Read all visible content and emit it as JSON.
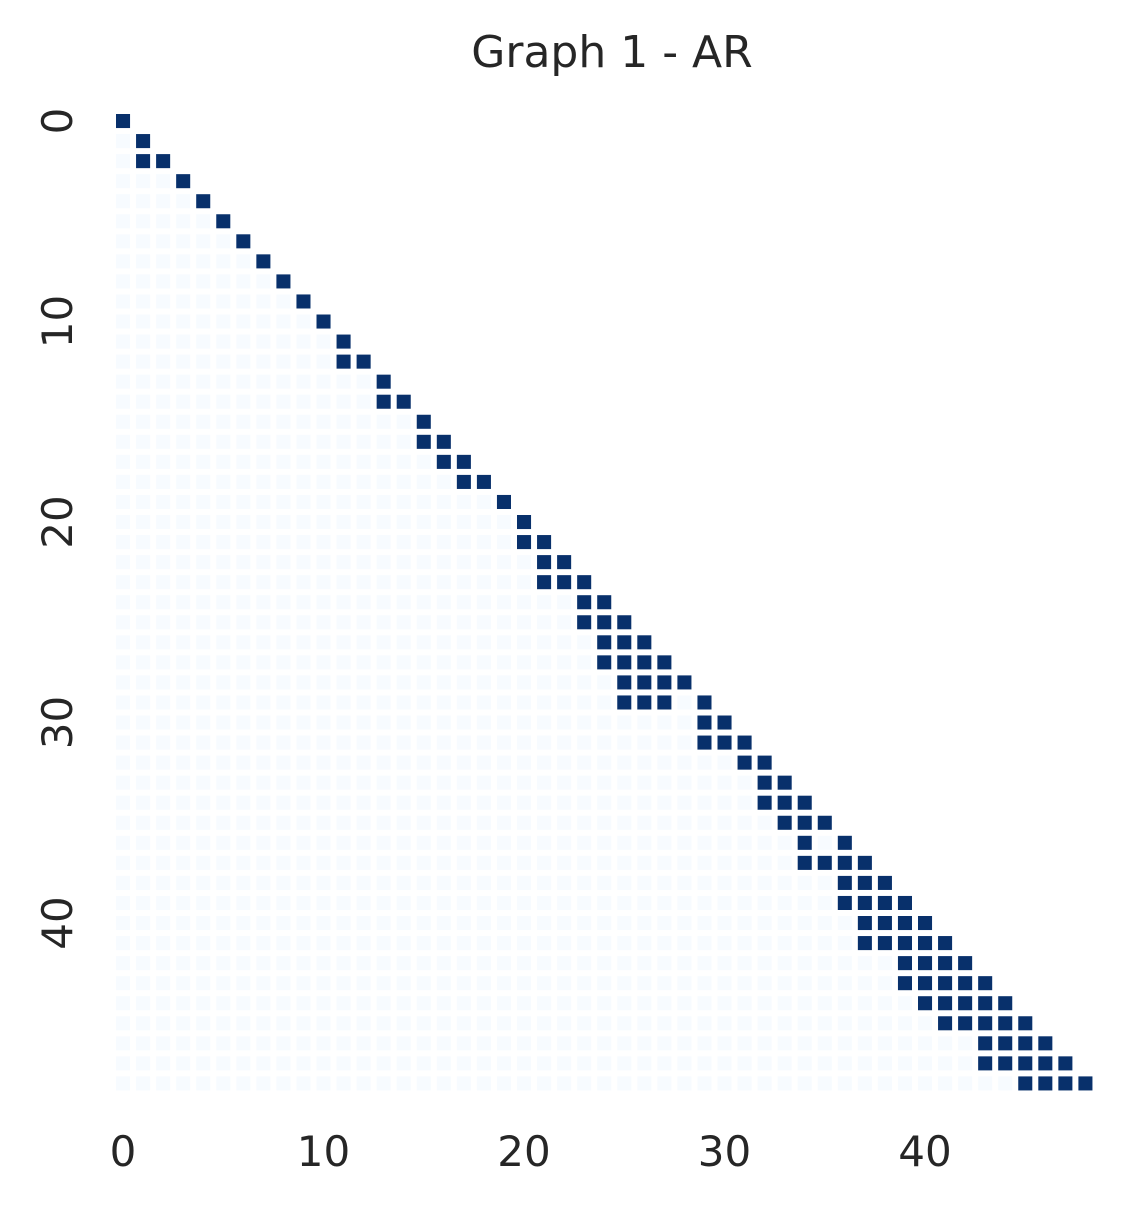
{
  "chart_data": {
    "type": "heatmap",
    "title": "Graph 1 - AR",
    "xlabel": "",
    "ylabel": "",
    "n": 49,
    "x_ticks": [
      0,
      10,
      20,
      30,
      40
    ],
    "y_ticks": [
      0,
      10,
      20,
      30,
      40
    ],
    "mask": "lower-triangle-including-diagonal",
    "colormap": {
      "zero": "#f7fbff",
      "one": "#08306b"
    },
    "ones": [
      [
        0,
        0
      ],
      [
        1,
        1
      ],
      [
        2,
        1
      ],
      [
        2,
        2
      ],
      [
        3,
        3
      ],
      [
        4,
        4
      ],
      [
        5,
        5
      ],
      [
        6,
        6
      ],
      [
        7,
        7
      ],
      [
        8,
        8
      ],
      [
        9,
        9
      ],
      [
        10,
        10
      ],
      [
        11,
        11
      ],
      [
        12,
        11
      ],
      [
        12,
        12
      ],
      [
        13,
        13
      ],
      [
        14,
        13
      ],
      [
        14,
        14
      ],
      [
        15,
        15
      ],
      [
        16,
        15
      ],
      [
        16,
        16
      ],
      [
        17,
        16
      ],
      [
        17,
        17
      ],
      [
        18,
        17
      ],
      [
        18,
        18
      ],
      [
        19,
        19
      ],
      [
        20,
        20
      ],
      [
        21,
        20
      ],
      [
        21,
        21
      ],
      [
        22,
        21
      ],
      [
        22,
        22
      ],
      [
        23,
        21
      ],
      [
        23,
        22
      ],
      [
        23,
        23
      ],
      [
        24,
        23
      ],
      [
        24,
        24
      ],
      [
        25,
        23
      ],
      [
        25,
        24
      ],
      [
        25,
        25
      ],
      [
        26,
        24
      ],
      [
        26,
        25
      ],
      [
        26,
        26
      ],
      [
        27,
        24
      ],
      [
        27,
        25
      ],
      [
        27,
        26
      ],
      [
        27,
        27
      ],
      [
        28,
        25
      ],
      [
        28,
        26
      ],
      [
        28,
        27
      ],
      [
        28,
        28
      ],
      [
        29,
        25
      ],
      [
        29,
        26
      ],
      [
        29,
        27
      ],
      [
        29,
        29
      ],
      [
        30,
        29
      ],
      [
        30,
        30
      ],
      [
        31,
        29
      ],
      [
        31,
        30
      ],
      [
        31,
        31
      ],
      [
        32,
        31
      ],
      [
        32,
        32
      ],
      [
        33,
        32
      ],
      [
        33,
        33
      ],
      [
        34,
        32
      ],
      [
        34,
        33
      ],
      [
        34,
        34
      ],
      [
        35,
        33
      ],
      [
        35,
        34
      ],
      [
        35,
        35
      ],
      [
        36,
        34
      ],
      [
        36,
        36
      ],
      [
        37,
        34
      ],
      [
        37,
        35
      ],
      [
        37,
        36
      ],
      [
        37,
        37
      ],
      [
        38,
        36
      ],
      [
        38,
        37
      ],
      [
        38,
        38
      ],
      [
        39,
        36
      ],
      [
        39,
        37
      ],
      [
        39,
        38
      ],
      [
        39,
        39
      ],
      [
        40,
        37
      ],
      [
        40,
        38
      ],
      [
        40,
        39
      ],
      [
        40,
        40
      ],
      [
        41,
        37
      ],
      [
        41,
        38
      ],
      [
        41,
        39
      ],
      [
        41,
        40
      ],
      [
        41,
        41
      ],
      [
        42,
        39
      ],
      [
        42,
        40
      ],
      [
        42,
        41
      ],
      [
        42,
        42
      ],
      [
        43,
        39
      ],
      [
        43,
        40
      ],
      [
        43,
        41
      ],
      [
        43,
        42
      ],
      [
        43,
        43
      ],
      [
        44,
        40
      ],
      [
        44,
        41
      ],
      [
        44,
        42
      ],
      [
        44,
        43
      ],
      [
        44,
        44
      ],
      [
        45,
        41
      ],
      [
        45,
        42
      ],
      [
        45,
        43
      ],
      [
        45,
        44
      ],
      [
        45,
        45
      ],
      [
        46,
        43
      ],
      [
        46,
        44
      ],
      [
        46,
        45
      ],
      [
        46,
        46
      ],
      [
        47,
        43
      ],
      [
        47,
        44
      ],
      [
        47,
        45
      ],
      [
        47,
        46
      ],
      [
        47,
        47
      ],
      [
        48,
        45
      ],
      [
        48,
        46
      ],
      [
        48,
        47
      ],
      [
        48,
        48
      ]
    ]
  }
}
